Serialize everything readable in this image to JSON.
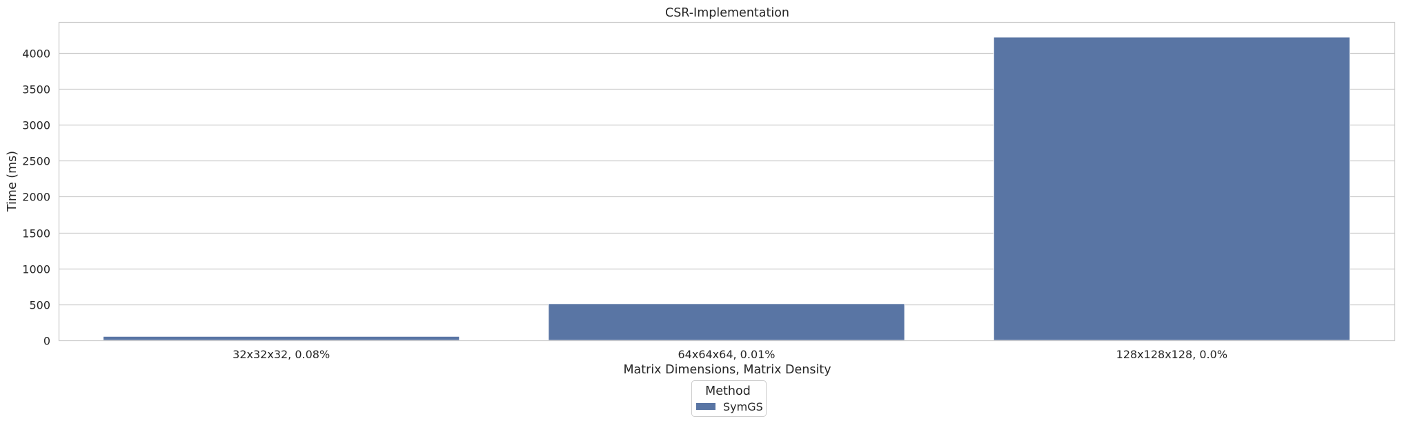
{
  "chart_data": {
    "type": "bar",
    "title": "CSR-Implementation",
    "xlabel": "Matrix Dimensions, Matrix Density",
    "ylabel": "Time (ms)",
    "categories": [
      "32x32x32, 0.08%",
      "64x64x64, 0.01%",
      "128x128x128, 0.0%"
    ],
    "series": [
      {
        "name": "SymGS",
        "values": [
          55,
          510,
          4220
        ],
        "color": "#5975a4"
      }
    ],
    "ylim": [
      0,
      4430
    ],
    "yticks": [
      0,
      500,
      1000,
      1500,
      2000,
      2500,
      3000,
      3500,
      4000
    ],
    "grid": true,
    "legend": {
      "title": "Method",
      "placement": "bottom-center"
    }
  }
}
